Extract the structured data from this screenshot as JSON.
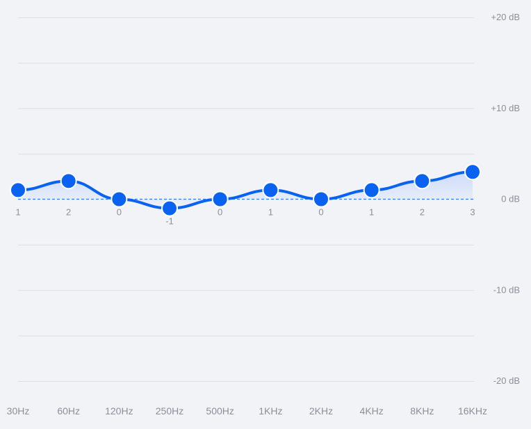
{
  "chart_data": {
    "type": "line",
    "title": "",
    "xlabel": "",
    "ylabel": "",
    "categories": [
      "30Hz",
      "60Hz",
      "120Hz",
      "250Hz",
      "500Hz",
      "1KHz",
      "2KHz",
      "4KHz",
      "8KHz",
      "16KHz"
    ],
    "series": [
      {
        "values": [
          1,
          2,
          0,
          -1,
          0,
          1,
          0,
          1,
          2,
          3
        ]
      }
    ],
    "y_ticks": [
      {
        "value": 20,
        "label": "+20 dB"
      },
      {
        "value": 10,
        "label": "+10 dB"
      },
      {
        "value": 0,
        "label": "0 dB"
      },
      {
        "value": -10,
        "label": "-10 dB"
      },
      {
        "value": -20,
        "label": "-20 dB"
      }
    ],
    "ylim": [
      -20,
      20
    ],
    "grid": true,
    "baseline": 0,
    "colors": {
      "line": "#0a63f0",
      "point_fill": "#0a63f0",
      "point_stroke": "#ffffff",
      "baseline": "#2f7bf5",
      "area": "#c7d8fb"
    }
  }
}
